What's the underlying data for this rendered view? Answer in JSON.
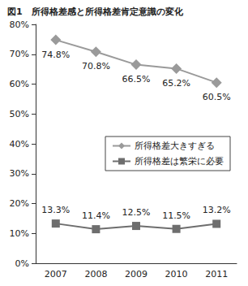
{
  "chart_data": {
    "type": "line",
    "title": "図1　所得格差感と所得格差肯定意識の変化",
    "categories": [
      "2007",
      "2008",
      "2009",
      "2010",
      "2011"
    ],
    "series": [
      {
        "name": "所得格差大きすぎる",
        "color": "#9a9a9a",
        "marker": "diamond",
        "values": [
          74.8,
          70.8,
          66.5,
          65.2,
          60.5
        ],
        "value_labels": [
          "74.8%",
          "70.8%",
          "66.5%",
          "65.2%",
          "60.5%"
        ]
      },
      {
        "name": "所得格差は繁栄に必要",
        "color": "#6e6e6e",
        "marker": "square",
        "values": [
          13.3,
          11.4,
          12.5,
          11.5,
          13.2
        ],
        "value_labels": [
          "13.3%",
          "11.4%",
          "12.5%",
          "11.5%",
          "13.2%"
        ]
      }
    ],
    "ylim": [
      0,
      80
    ],
    "yticks": [
      {
        "value": 0,
        "label": "0%"
      },
      {
        "value": 10,
        "label": "10%"
      },
      {
        "value": 20,
        "label": "20%"
      },
      {
        "value": 30,
        "label": "30%"
      },
      {
        "value": 40,
        "label": "40%"
      },
      {
        "value": 50,
        "label": "50%"
      },
      {
        "value": 60,
        "label": "60%"
      },
      {
        "value": 70,
        "label": "70%"
      },
      {
        "value": 80,
        "label": "80%"
      }
    ],
    "grid": false,
    "legend": "right",
    "data_labels": true
  }
}
